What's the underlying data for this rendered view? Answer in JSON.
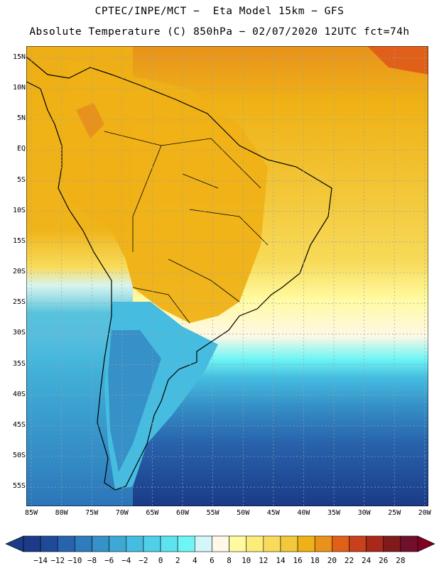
{
  "title_line1": "CPTEC/INPE/MCT −  Eta Model 15km − GFS",
  "title_line2": "Absolute Temperature (C) 850hPa − 02/07/2020 12UTC fct=74h",
  "lat_labels": [
    "15N",
    "10N",
    "5N",
    "EQ",
    "5S",
    "10S",
    "15S",
    "20S",
    "25S",
    "30S",
    "35S",
    "40S",
    "45S",
    "50S",
    "55S"
  ],
  "lon_labels": [
    "85W",
    "80W",
    "75W",
    "70W",
    "65W",
    "60W",
    "55W",
    "50W",
    "45W",
    "40W",
    "35W",
    "30W",
    "25W",
    "20W"
  ],
  "colorbar": {
    "labels": [
      "−14",
      "−12",
      "−10",
      "−8",
      "−6",
      "−4",
      "−2",
      "0",
      "2",
      "4",
      "6",
      "8",
      "10",
      "12",
      "14",
      "16",
      "18",
      "20",
      "22",
      "24",
      "26",
      "28"
    ],
    "colors": [
      "#1b3a87",
      "#1f4a99",
      "#2864ad",
      "#2e7bbd",
      "#3591c8",
      "#3ea8d4",
      "#46bde0",
      "#4fd0e8",
      "#5ce3ef",
      "#6ff5f5",
      "#d4f5fa",
      "#fff8e6",
      "#fffaa0",
      "#fcec7a",
      "#f8db5a",
      "#f3c83a",
      "#efb116",
      "#e8921c",
      "#e0601a",
      "#c8401c",
      "#a8281a",
      "#7f1b1b",
      "#70102c"
    ],
    "under_color": "#1b3a87",
    "over_color": "#800020"
  }
}
